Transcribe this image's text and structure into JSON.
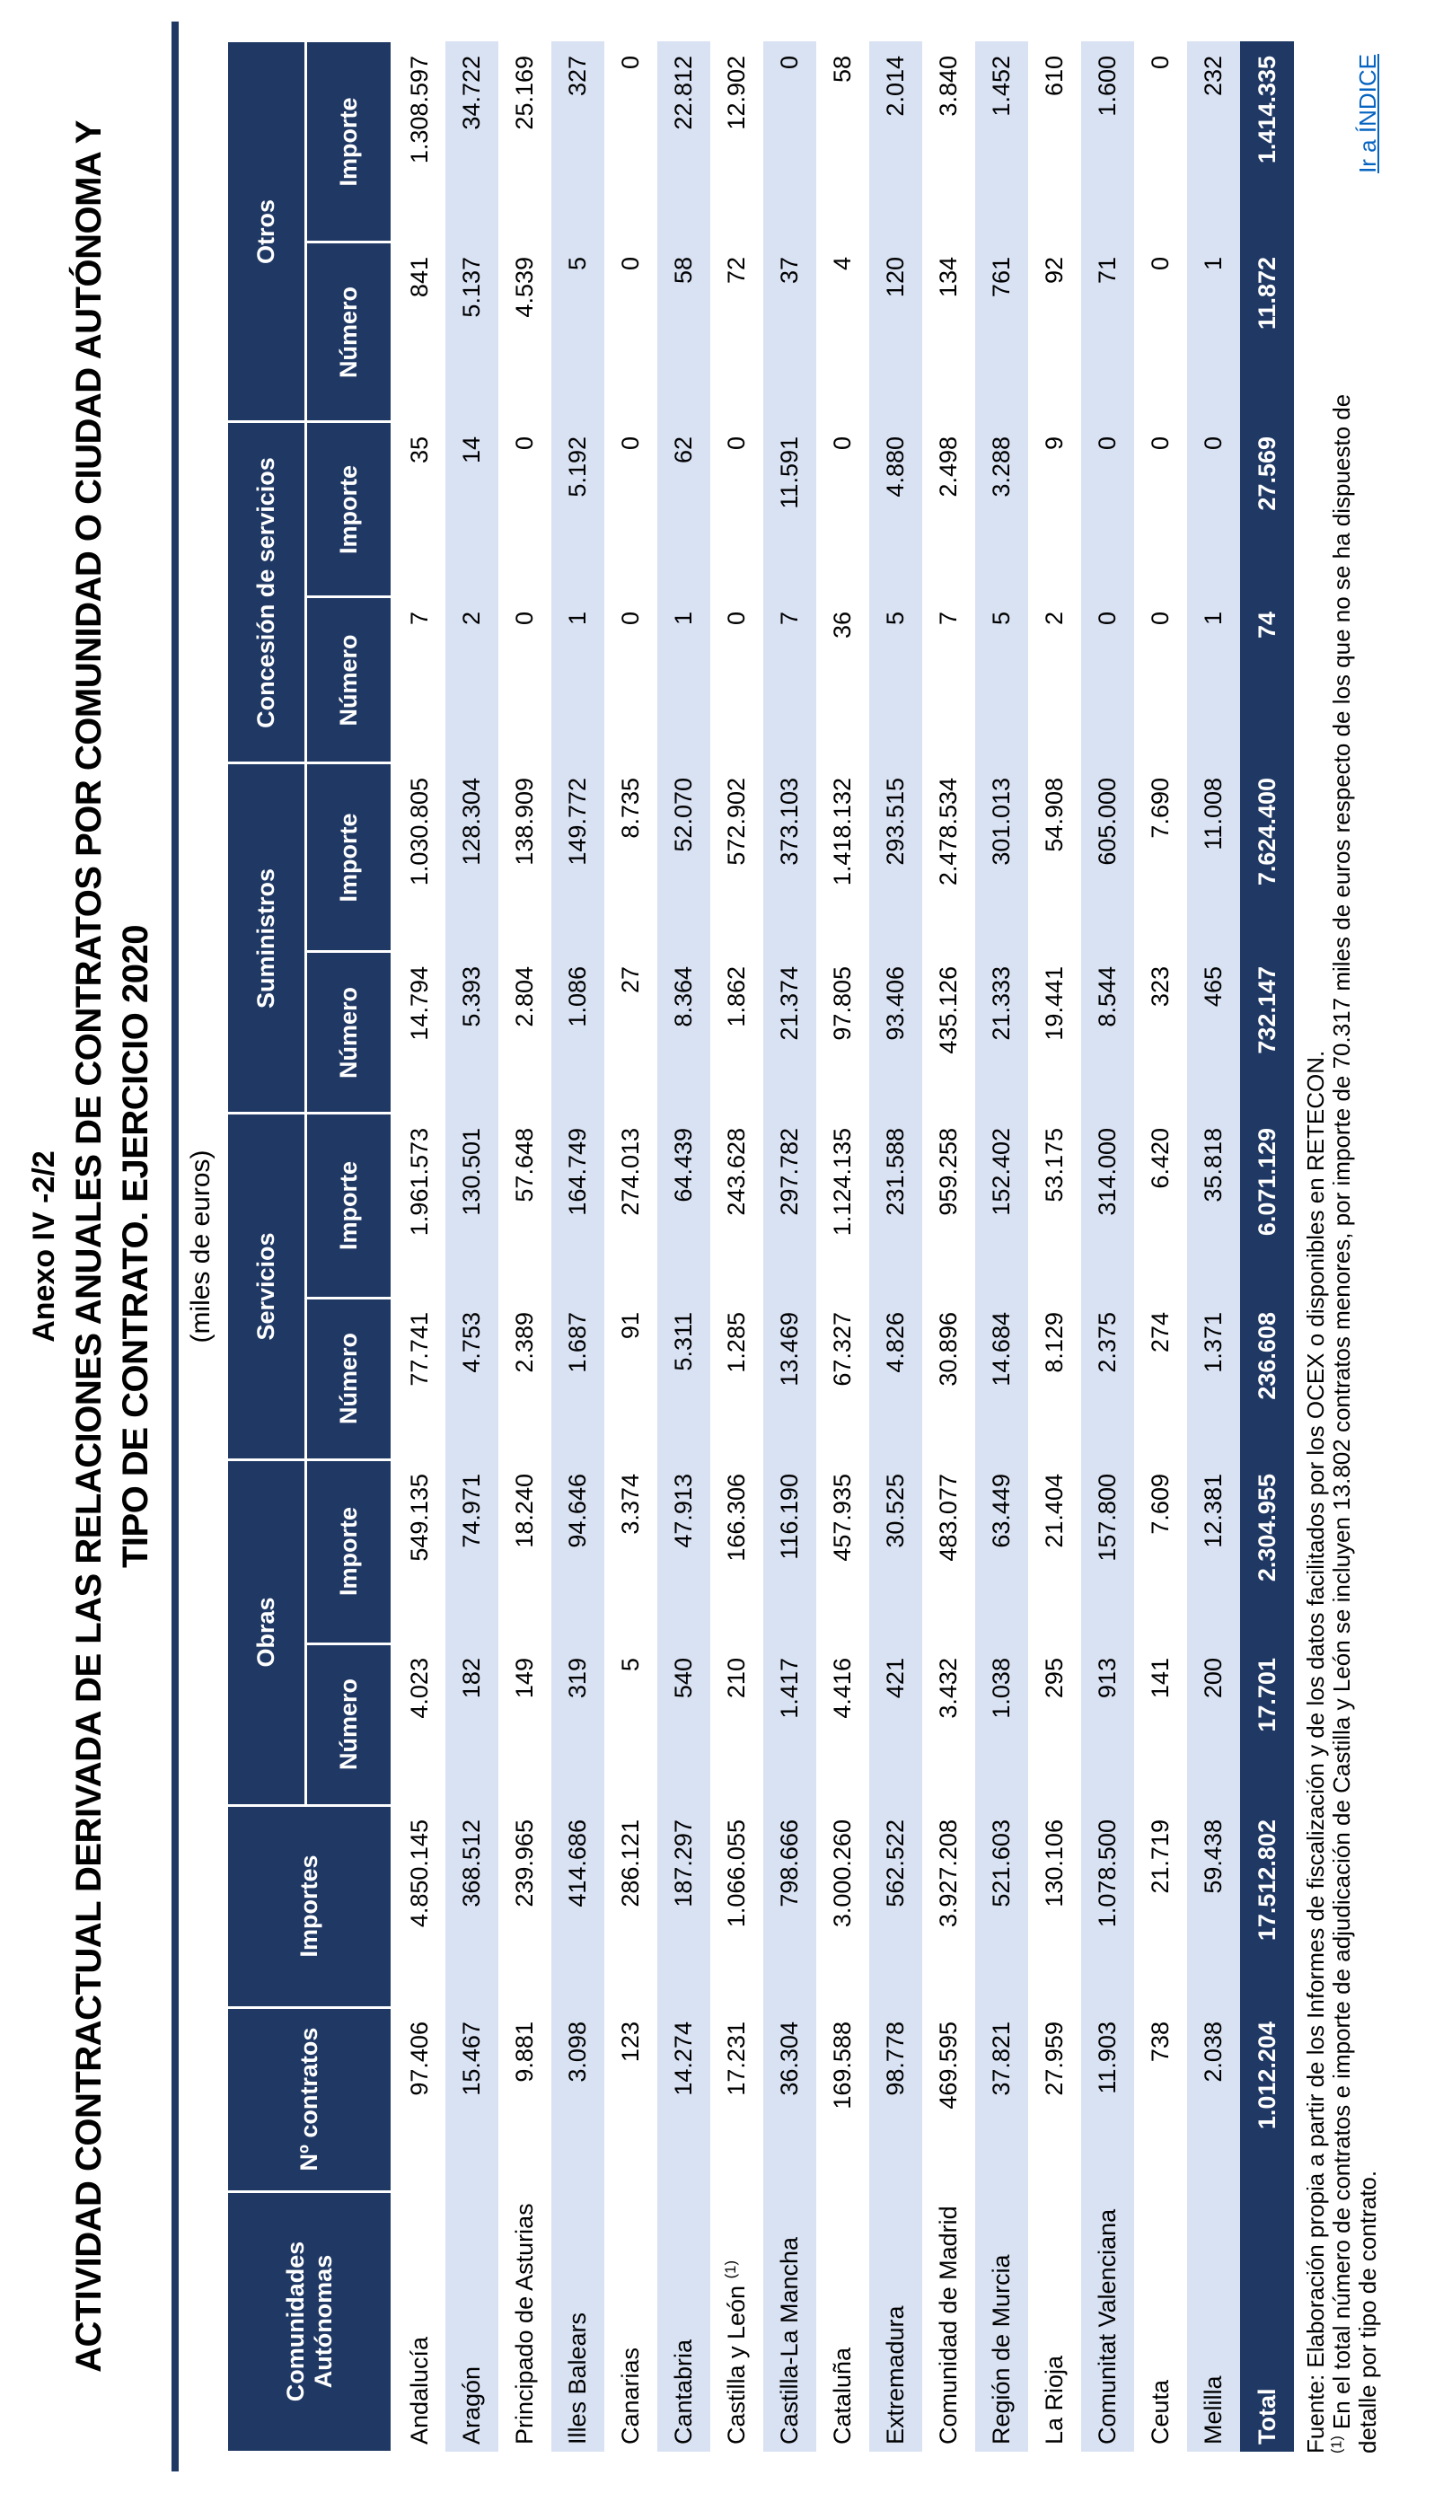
{
  "page": {
    "annex_label": "Anexo IV -2/2",
    "title_line1": "ACTIVIDAD CONTRACTUAL DERIVADA DE LAS RELACIONES ANUALES DE CONTRATOS POR COMUNIDAD O CIUDAD AUTÓNOMA Y",
    "title_line2": "TIPO DE CONTRATO. EJERCICIO 2020",
    "units_note": "(miles de euros)"
  },
  "colors": {
    "header_bg": "#1F3864",
    "stripe_bg": "#D9E2F3",
    "rule": "#1F3864",
    "link": "#0563C1"
  },
  "table": {
    "headers": {
      "communities": "Comunidades Autónomas",
      "num_contracts": "Nº contratos",
      "importes": "Importes",
      "groups": [
        "Obras",
        "Servicios",
        "Suministros",
        "Concesión de servicios",
        "Otros"
      ],
      "sub_number": "Número",
      "sub_amount": "Importe"
    },
    "rows": [
      {
        "name": "Andalucía",
        "sup": "",
        "values": [
          "97.406",
          "4.850.145",
          "4.023",
          "549.135",
          "77.741",
          "1.961.573",
          "14.794",
          "1.030.805",
          "7",
          "35",
          "841",
          "1.308.597"
        ]
      },
      {
        "name": "Aragón",
        "sup": "",
        "values": [
          "15.467",
          "368.512",
          "182",
          "74.971",
          "4.753",
          "130.501",
          "5.393",
          "128.304",
          "2",
          "14",
          "5.137",
          "34.722"
        ]
      },
      {
        "name": "Principado de Asturias",
        "sup": "",
        "values": [
          "9.881",
          "239.965",
          "149",
          "18.240",
          "2.389",
          "57.648",
          "2.804",
          "138.909",
          "0",
          "0",
          "4.539",
          "25.169"
        ]
      },
      {
        "name": "Illes Balears",
        "sup": "",
        "values": [
          "3.098",
          "414.686",
          "319",
          "94.646",
          "1.687",
          "164.749",
          "1.086",
          "149.772",
          "1",
          "5.192",
          "5",
          "327"
        ]
      },
      {
        "name": "Canarias",
        "sup": "",
        "values": [
          "123",
          "286.121",
          "5",
          "3.374",
          "91",
          "274.013",
          "27",
          "8.735",
          "0",
          "0",
          "0",
          "0"
        ]
      },
      {
        "name": "Cantabria",
        "sup": "",
        "values": [
          "14.274",
          "187.297",
          "540",
          "47.913",
          "5.311",
          "64.439",
          "8.364",
          "52.070",
          "1",
          "62",
          "58",
          "22.812"
        ]
      },
      {
        "name": "Castilla y León",
        "sup": "(1)",
        "values": [
          "17.231",
          "1.066.055",
          "210",
          "166.306",
          "1.285",
          "243.628",
          "1.862",
          "572.902",
          "0",
          "0",
          "72",
          "12.902"
        ]
      },
      {
        "name": "Castilla-La Mancha",
        "sup": "",
        "values": [
          "36.304",
          "798.666",
          "1.417",
          "116.190",
          "13.469",
          "297.782",
          "21.374",
          "373.103",
          "7",
          "11.591",
          "37",
          "0"
        ]
      },
      {
        "name": "Cataluña",
        "sup": "",
        "values": [
          "169.588",
          "3.000.260",
          "4.416",
          "457.935",
          "67.327",
          "1.124.135",
          "97.805",
          "1.418.132",
          "36",
          "0",
          "4",
          "58"
        ]
      },
      {
        "name": "Extremadura",
        "sup": "",
        "values": [
          "98.778",
          "562.522",
          "421",
          "30.525",
          "4.826",
          "231.588",
          "93.406",
          "293.515",
          "5",
          "4.880",
          "120",
          "2.014"
        ]
      },
      {
        "name": "Comunidad de Madrid",
        "sup": "",
        "values": [
          "469.595",
          "3.927.208",
          "3.432",
          "483.077",
          "30.896",
          "959.258",
          "435.126",
          "2.478.534",
          "7",
          "2.498",
          "134",
          "3.840"
        ]
      },
      {
        "name": "Región de Murcia",
        "sup": "",
        "values": [
          "37.821",
          "521.603",
          "1.038",
          "63.449",
          "14.684",
          "152.402",
          "21.333",
          "301.013",
          "5",
          "3.288",
          "761",
          "1.452"
        ]
      },
      {
        "name": "La Rioja",
        "sup": "",
        "values": [
          "27.959",
          "130.106",
          "295",
          "21.404",
          "8.129",
          "53.175",
          "19.441",
          "54.908",
          "2",
          "9",
          "92",
          "610"
        ]
      },
      {
        "name": "Comunitat Valenciana",
        "sup": "",
        "values": [
          "11.903",
          "1.078.500",
          "913",
          "157.800",
          "2.375",
          "314.000",
          "8.544",
          "605.000",
          "0",
          "0",
          "71",
          "1.600"
        ]
      },
      {
        "name": "Ceuta",
        "sup": "",
        "values": [
          "738",
          "21.719",
          "141",
          "7.609",
          "274",
          "6.420",
          "323",
          "7.690",
          "0",
          "0",
          "0",
          "0"
        ]
      },
      {
        "name": "Melilla",
        "sup": "",
        "values": [
          "2.038",
          "59.438",
          "200",
          "12.381",
          "1.371",
          "35.818",
          "465",
          "11.008",
          "1",
          "0",
          "1",
          "232"
        ]
      }
    ],
    "total": {
      "name": "Total",
      "values": [
        "1.012.204",
        "17.512.802",
        "17.701",
        "2.304.955",
        "236.608",
        "6.071.129",
        "732.147",
        "7.624.400",
        "74",
        "27.569",
        "11.872",
        "1.414.335"
      ]
    }
  },
  "footer": {
    "source": "Fuente: Elaboración propia a partir de los Informes de fiscalización y de los datos facilitados por los OCEX o disponibles en RETECON.",
    "note_sup": "(1)",
    "note_text": "En el total número de contratos e importe de adjudicación de Castilla y León se incluyen 13.802 contratos menores, por importe de 70.317 miles de euros respecto de los que no se ha dispuesto de detalle por tipo de contrato.",
    "index_link": "Ir a ÍNDICE"
  }
}
